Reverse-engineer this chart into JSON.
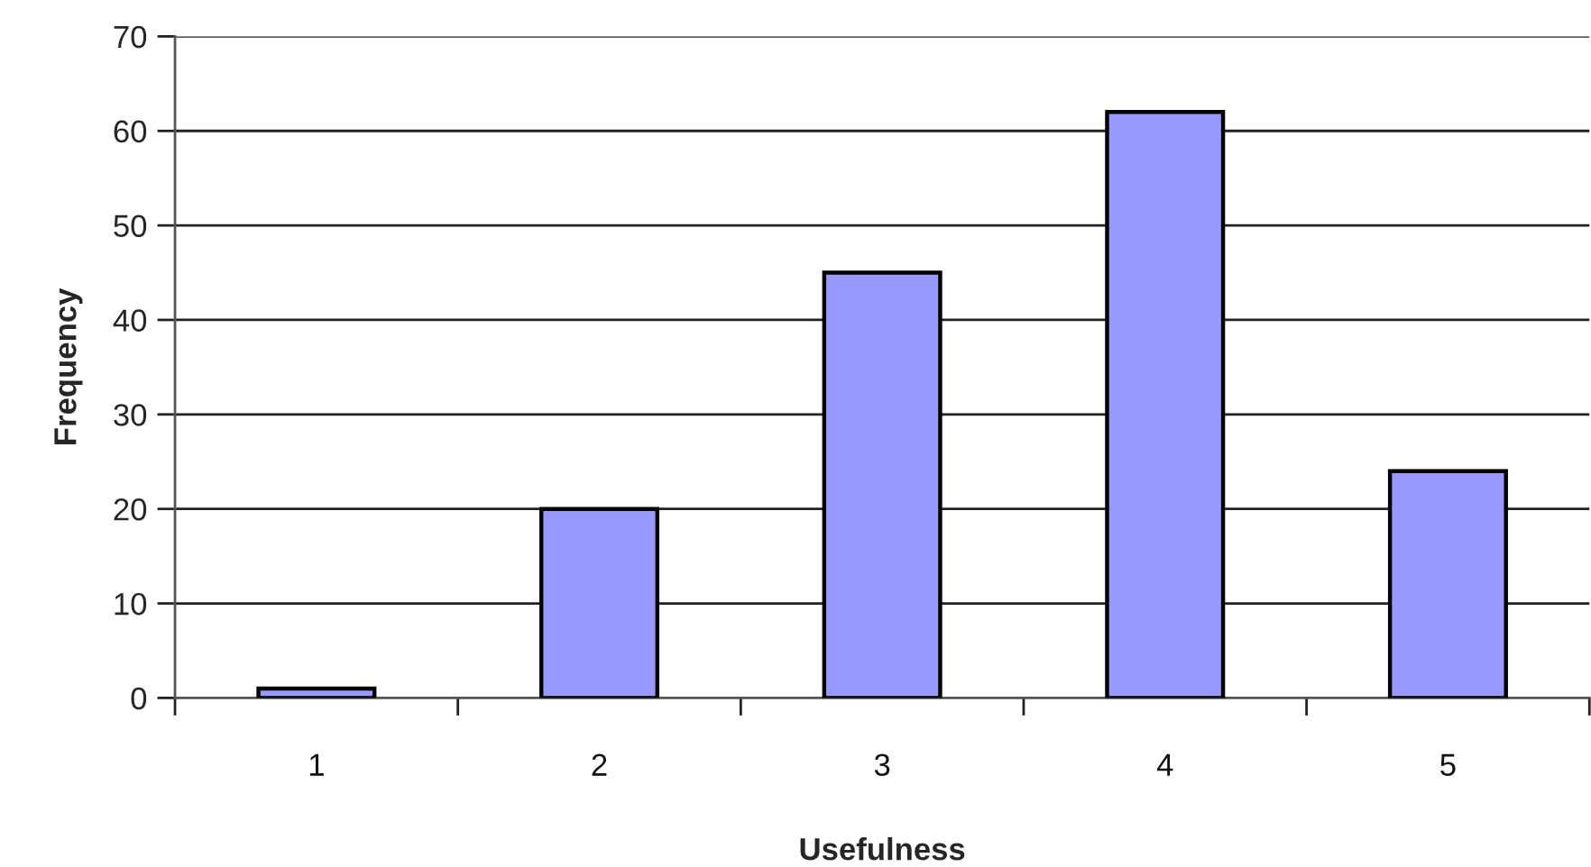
{
  "chart_data": {
    "type": "bar",
    "xlabel": "Usefulness",
    "ylabel": "Frequency",
    "categories": [
      "1",
      "2",
      "3",
      "4",
      "5"
    ],
    "values": [
      1,
      20,
      45,
      62,
      24
    ],
    "color": "#9999ff",
    "ylim": [
      0,
      70
    ],
    "yticks": [
      0,
      10,
      20,
      30,
      40,
      50,
      60,
      70
    ],
    "grid": "y"
  }
}
